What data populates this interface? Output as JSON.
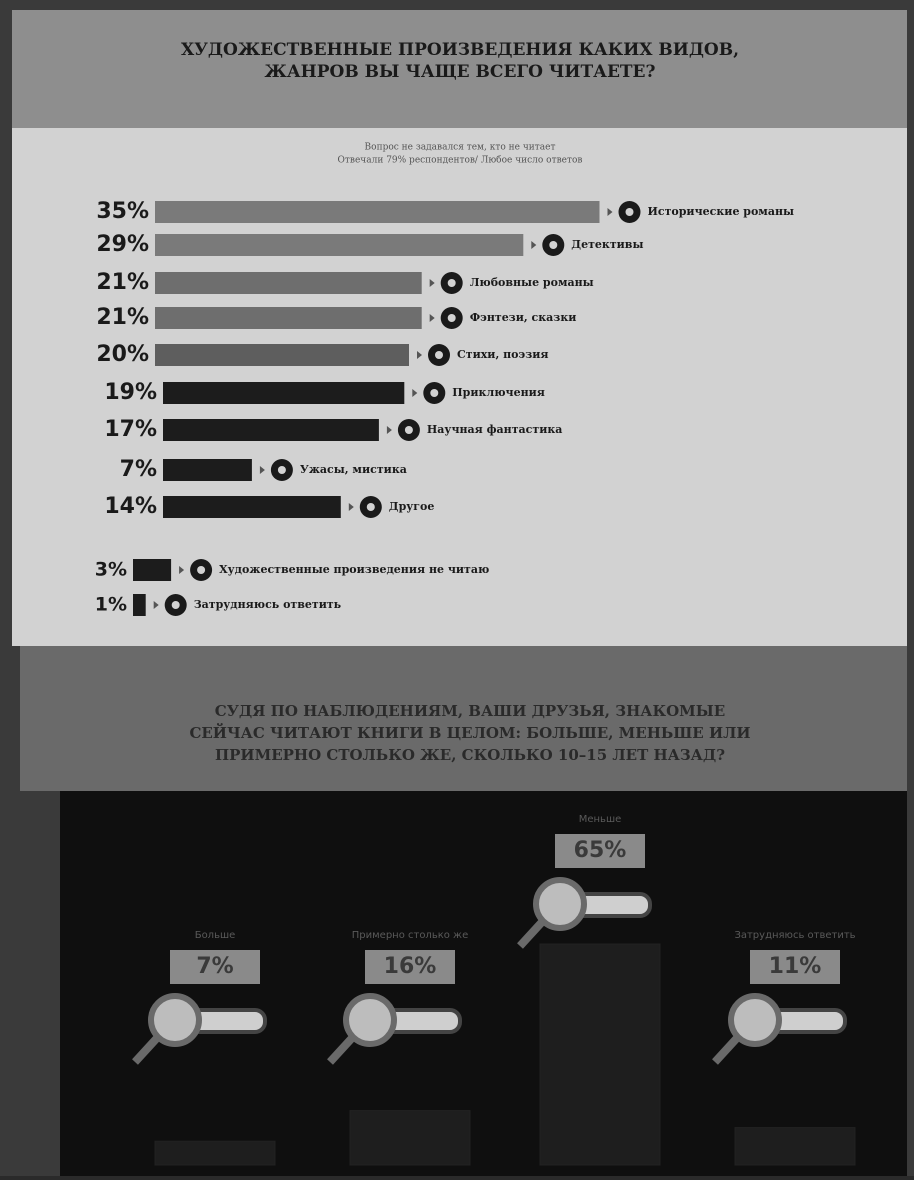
{
  "chart_data": [
    {
      "type": "hbar",
      "title": "ХУДОЖЕСТВЕННЫЕ ПРОИЗВЕДЕНИЯ КАКИХ ВИДОВ, ЖАНРОВ ВЫ ЧАЩЕ ВСЕГО ЧИТАЕТЕ?",
      "subtitle": [
        "Вопрос не задавался тем, кто не читает",
        "Отвечали 79% респондентов/ Любое число ответов"
      ],
      "categories": [
        "Исторические романы",
        "Детективы",
        "Любовные романы",
        "Фэнтези, сказки",
        "Стихи, поэзия",
        "Приключения",
        "Научная фантастика",
        "Ужасы, мистика",
        "Другое",
        "Художественные произведения не читаю",
        "Затрудняюсь ответить"
      ],
      "values": [
        35,
        29,
        21,
        21,
        20,
        19,
        17,
        7,
        14,
        3,
        1
      ],
      "value_labels": [
        "35%",
        "29%",
        "21%",
        "21%",
        "20%",
        "19%",
        "17%",
        "7%",
        "14%",
        "3%",
        "1%"
      ],
      "colors": [
        "#7a7a7a",
        "#7a7a7a",
        "#6e6e6e",
        "#6e6e6e",
        "#5e5e5e",
        "#1c1c1c",
        "#1c1c1c",
        "#1c1c1c",
        "#1c1c1c",
        "#1c1c1c",
        "#1c1c1c"
      ]
    },
    {
      "type": "column",
      "title": "СУДЯ ПО НАБЛЮДЕНИЯМ, ВАШИ ДРУЗЬЯ, ЗНАКОМЫЕ СЕЙЧАС ЧИТАЮТ КНИГИ В ЦЕЛОМ: БОЛЬШЕ, МЕНЬШЕ ИЛИ ПРИМЕРНО СТОЛЬКО ЖЕ, СКОЛЬКО 10–15 ЛЕТ НАЗАД?",
      "categories": [
        "Больше",
        "Примерно столько же",
        "Меньше",
        "Затрудняюсь ответить"
      ],
      "values": [
        7,
        16,
        65,
        11
      ],
      "value_labels": [
        "7%",
        "16%",
        "65%",
        "11%"
      ],
      "color": "#1e1e1e"
    }
  ]
}
